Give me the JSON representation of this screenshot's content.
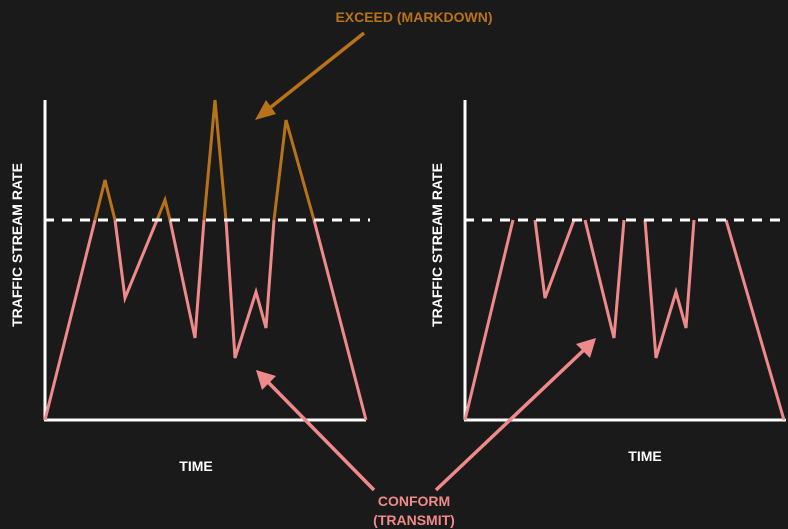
{
  "labels": {
    "exceed": "EXCEED (MARKDOWN)",
    "conform_line1": "CONFORM",
    "conform_line2": "(TRANSMIT)"
  },
  "left_panel": {
    "y_axis_label": "TRAFFIC STREAM RATE",
    "x_axis_label": "TIME"
  },
  "right_panel": {
    "y_axis_label": "TRAFFIC STREAM RATE",
    "x_axis_label": "TIME"
  },
  "colors": {
    "background": "#1a1a1a",
    "axis": "#ffffff",
    "threshold": "#ffffff",
    "exceed": "#b8731a",
    "conform": "#f08a8a"
  }
}
